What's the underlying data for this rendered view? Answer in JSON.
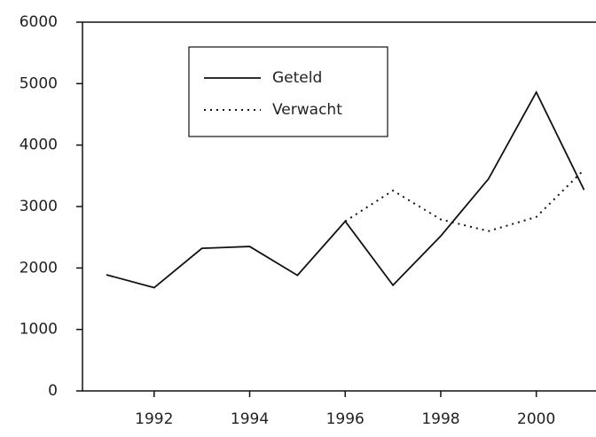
{
  "chart_data": {
    "type": "line",
    "x": [
      1991,
      1992,
      1993,
      1994,
      1995,
      1996,
      1997,
      1998,
      1999,
      2000,
      2001
    ],
    "series": [
      {
        "name": "Geteld",
        "color": "#111111",
        "style": "solid",
        "values": [
          1890,
          1680,
          2320,
          2350,
          1880,
          2760,
          1720,
          2520,
          3450,
          4860,
          3270
        ]
      },
      {
        "name": "Verwacht",
        "color": "#111111",
        "style": "dotted",
        "values": [
          null,
          null,
          null,
          null,
          null,
          2760,
          3260,
          2790,
          2600,
          2830,
          3600
        ]
      }
    ],
    "xlim": [
      1990.5,
      2001.25
    ],
    "ylim": [
      0,
      6000
    ],
    "xticks": [
      1992,
      1994,
      1996,
      1998,
      2000
    ],
    "yticks": [
      0,
      1000,
      2000,
      3000,
      4000,
      5000,
      6000
    ],
    "grid": false,
    "legend": "upper left"
  }
}
